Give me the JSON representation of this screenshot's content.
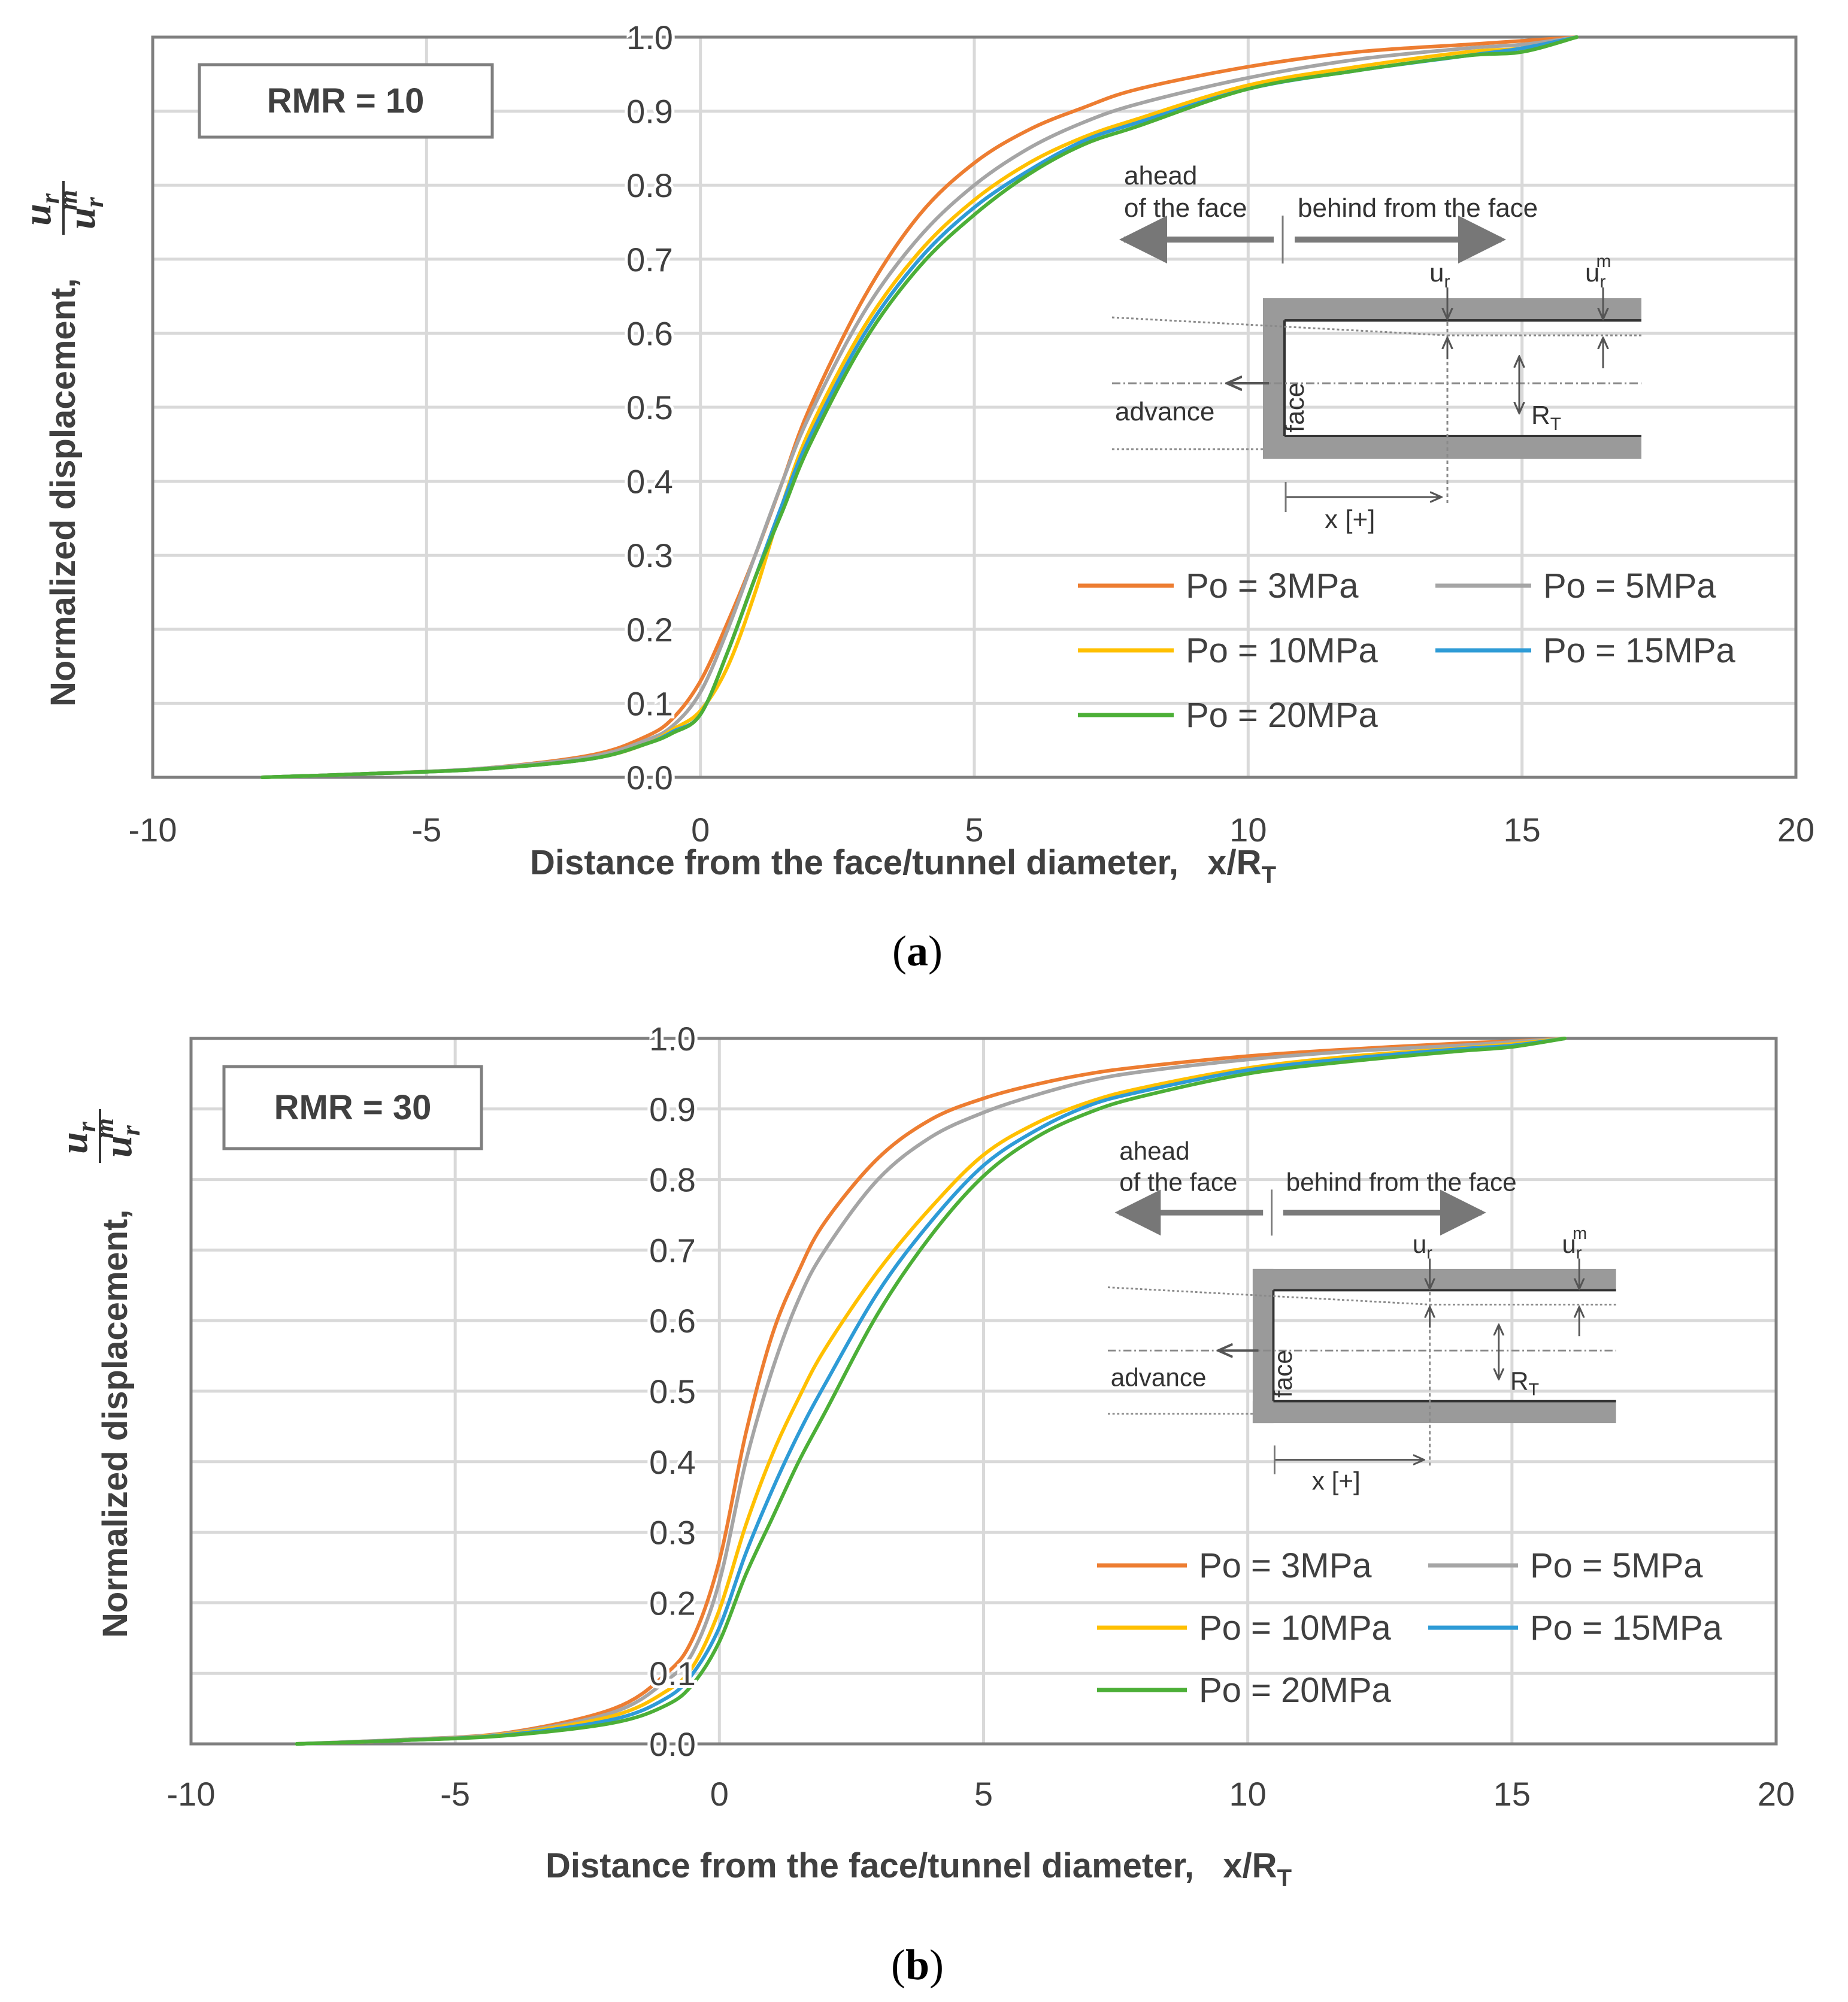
{
  "colors": {
    "po3": "#ED7D31",
    "po5": "#A5A5A5",
    "po10": "#FFC000",
    "po15": "#2E9BD6",
    "po20": "#4CAF37",
    "text": "#404040",
    "grid": "#d9d9d9",
    "frame": "#7f7f7f"
  },
  "chart_data": [
    {
      "type": "line",
      "panel": "a",
      "caption": "(a)",
      "caption_letter": "a",
      "annotation": "RMR = 10",
      "xlabel": "Distance from the face/tunnel diameter,   x/R",
      "xlabel_sub": "T",
      "ylabel": "Normalized displacement,",
      "ylabel_fraction": {
        "numerator": "u",
        "numerator_sub": "r",
        "denominator": "u",
        "denominator_sub": "r",
        "denominator_sup": "m"
      },
      "xlim": [
        -10,
        20
      ],
      "ylim": [
        0,
        1
      ],
      "xticks": [
        "-10",
        "-5",
        "0",
        "5",
        "10",
        "15",
        "20"
      ],
      "yticks": [
        "0.0",
        "0.1",
        "0.2",
        "0.3",
        "0.4",
        "0.5",
        "0.6",
        "0.7",
        "0.8",
        "0.9",
        "1.0"
      ],
      "legend_position": "lower-right",
      "x": [
        -8,
        -6,
        -4,
        -2,
        -1,
        -0.5,
        0,
        0.5,
        1,
        1.5,
        2,
        3,
        4,
        5,
        6,
        7,
        8,
        10,
        12,
        14,
        15,
        16
      ],
      "series": [
        {
          "name": "Po = 3MPa",
          "color_key": "po3",
          "values": [
            0.0,
            0.005,
            0.012,
            0.03,
            0.055,
            0.08,
            0.13,
            0.21,
            0.3,
            0.4,
            0.5,
            0.65,
            0.76,
            0.83,
            0.875,
            0.905,
            0.93,
            0.96,
            0.98,
            0.99,
            0.995,
            1.0
          ]
        },
        {
          "name": "Po = 5MPa",
          "color_key": "po5",
          "values": [
            0.0,
            0.005,
            0.012,
            0.028,
            0.05,
            0.07,
            0.115,
            0.2,
            0.3,
            0.4,
            0.49,
            0.63,
            0.73,
            0.8,
            0.85,
            0.885,
            0.91,
            0.945,
            0.97,
            0.985,
            0.99,
            1.0
          ]
        },
        {
          "name": "Po = 10MPa",
          "color_key": "po10",
          "values": [
            0.0,
            0.005,
            0.011,
            0.025,
            0.045,
            0.065,
            0.09,
            0.15,
            0.25,
            0.37,
            0.47,
            0.61,
            0.71,
            0.78,
            0.83,
            0.865,
            0.89,
            0.935,
            0.96,
            0.98,
            0.985,
            1.0
          ]
        },
        {
          "name": "Po = 15MPa",
          "color_key": "po15",
          "values": [
            0.0,
            0.005,
            0.011,
            0.025,
            0.045,
            0.062,
            0.085,
            0.17,
            0.27,
            0.37,
            0.46,
            0.6,
            0.7,
            0.77,
            0.82,
            0.86,
            0.885,
            0.93,
            0.955,
            0.975,
            0.985,
            1.0
          ]
        },
        {
          "name": "Po = 20MPa",
          "color_key": "po20",
          "values": [
            0.0,
            0.005,
            0.011,
            0.025,
            0.045,
            0.06,
            0.085,
            0.17,
            0.27,
            0.36,
            0.45,
            0.59,
            0.69,
            0.76,
            0.815,
            0.855,
            0.88,
            0.93,
            0.955,
            0.975,
            0.98,
            1.0
          ]
        }
      ],
      "inset": {
        "ahead_line1": "ahead",
        "ahead_line2": "of the face",
        "behind": "behind from the face",
        "ur": "u",
        "ur_sub": "r",
        "urm": "u",
        "urm_sub": "r",
        "urm_sup": "m",
        "advance": "advance",
        "face": "face",
        "rt": "R",
        "rt_sub": "T",
        "x_plus": "x [+]"
      }
    },
    {
      "type": "line",
      "panel": "b",
      "caption": "(b)",
      "caption_letter": "b",
      "annotation": "RMR = 30",
      "xlabel": "Distance from the face/tunnel diameter,   x/R",
      "xlabel_sub": "T",
      "ylabel": "Normalized displacement,",
      "ylabel_fraction": {
        "numerator": "u",
        "numerator_sub": "r",
        "denominator": "u",
        "denominator_sub": "r",
        "denominator_sup": "m"
      },
      "xlim": [
        -10,
        20
      ],
      "ylim": [
        0,
        1
      ],
      "xticks": [
        "-10",
        "-5",
        "0",
        "5",
        "10",
        "15",
        "20"
      ],
      "yticks": [
        "0.0",
        "0.1",
        "0.2",
        "0.3",
        "0.4",
        "0.5",
        "0.6",
        "0.7",
        "0.8",
        "0.9",
        "1.0"
      ],
      "legend_position": "lower-right",
      "x": [
        -8,
        -6,
        -4,
        -2,
        -1,
        -0.5,
        0,
        0.5,
        1,
        1.5,
        2,
        3,
        4,
        5,
        6,
        7,
        8,
        10,
        12,
        14,
        15,
        16
      ],
      "series": [
        {
          "name": "Po = 3MPa",
          "color_key": "po3",
          "values": [
            0.0,
            0.006,
            0.016,
            0.05,
            0.1,
            0.15,
            0.26,
            0.44,
            0.58,
            0.67,
            0.74,
            0.83,
            0.885,
            0.915,
            0.935,
            0.95,
            0.96,
            0.975,
            0.985,
            0.993,
            0.996,
            1.0
          ]
        },
        {
          "name": "Po = 5MPa",
          "color_key": "po5",
          "values": [
            0.0,
            0.006,
            0.015,
            0.045,
            0.09,
            0.13,
            0.23,
            0.4,
            0.53,
            0.63,
            0.7,
            0.8,
            0.86,
            0.895,
            0.92,
            0.94,
            0.953,
            0.97,
            0.982,
            0.99,
            0.995,
            1.0
          ]
        },
        {
          "name": "Po = 10MPa",
          "color_key": "po10",
          "values": [
            0.0,
            0.005,
            0.014,
            0.04,
            0.075,
            0.11,
            0.19,
            0.31,
            0.41,
            0.49,
            0.56,
            0.67,
            0.76,
            0.835,
            0.88,
            0.91,
            0.93,
            0.958,
            0.975,
            0.986,
            0.992,
            1.0
          ]
        },
        {
          "name": "Po = 15MPa",
          "color_key": "po15",
          "values": [
            0.0,
            0.005,
            0.013,
            0.035,
            0.065,
            0.1,
            0.165,
            0.27,
            0.36,
            0.44,
            0.51,
            0.64,
            0.74,
            0.82,
            0.87,
            0.905,
            0.925,
            0.955,
            0.972,
            0.985,
            0.99,
            1.0
          ]
        },
        {
          "name": "Po = 20MPa",
          "color_key": "po20",
          "values": [
            0.0,
            0.005,
            0.012,
            0.03,
            0.055,
            0.085,
            0.145,
            0.24,
            0.32,
            0.4,
            0.47,
            0.61,
            0.72,
            0.805,
            0.86,
            0.895,
            0.918,
            0.95,
            0.968,
            0.982,
            0.988,
            1.0
          ]
        }
      ],
      "inset": {
        "ahead_line1": "ahead",
        "ahead_line2": "of the face",
        "behind": "behind from the face",
        "ur": "u",
        "ur_sub": "r",
        "urm": "u",
        "urm_sub": "r",
        "urm_sup": "m",
        "advance": "advance",
        "face": "face",
        "rt": "R",
        "rt_sub": "T",
        "x_plus": "x [+]"
      }
    }
  ]
}
